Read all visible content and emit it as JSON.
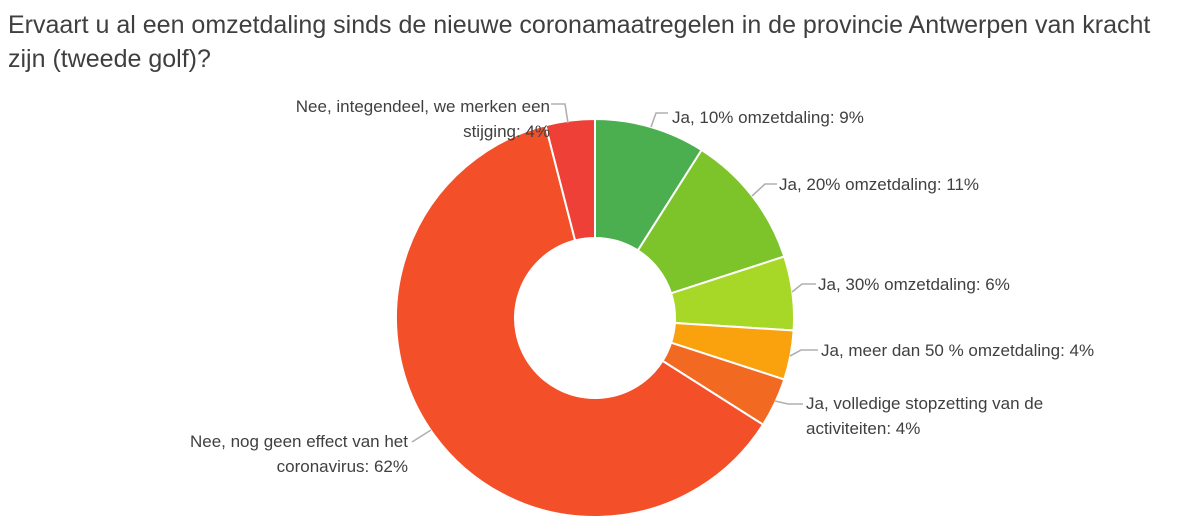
{
  "title": "Ervaart u al een omzetdaling sinds de nieuwe coronamaatregelen in de provincie Antwerpen van kracht zijn (tweede golf)?",
  "chart_data": {
    "type": "pie",
    "subtype": "donut",
    "title": "Ervaart u al een omzetdaling sinds de nieuwe coronamaatregelen in de provincie Antwerpen van kracht zijn (tweede golf)?",
    "unit": "%",
    "total": 100,
    "start_angle_deg": 0,
    "direction": "clockwise",
    "inner_radius_ratio": 0.4,
    "legend_position": "none",
    "label_style": "callout-leader-lines",
    "label_color": "#404040",
    "leader_color": "#b0b0b0",
    "slice_border_color": "#ffffff",
    "slices": [
      {
        "id": "ja-10",
        "label": "Ja, 10% omzetdaling",
        "value": 9,
        "color": "#4bae4f",
        "display": "Ja, 10% omzetdaling: 9%"
      },
      {
        "id": "ja-20",
        "label": "Ja, 20% omzetdaling",
        "value": 11,
        "color": "#7dc32a",
        "display": "Ja, 20% omzetdaling: 11%"
      },
      {
        "id": "ja-30",
        "label": "Ja, 30% omzetdaling",
        "value": 6,
        "color": "#a8d827",
        "display": "Ja, 30% omzetdaling: 6%"
      },
      {
        "id": "ja-50",
        "label": "Ja, meer dan 50 % omzetdaling",
        "value": 4,
        "color": "#faa10e",
        "display": "Ja, meer dan 50 % omzetdaling: 4%"
      },
      {
        "id": "stopzetting",
        "label": "Ja, volledige stopzetting van de activiteiten",
        "value": 4,
        "color": "#f26a22",
        "display": "Ja, volledige stopzetting van de activiteiten: 4%"
      },
      {
        "id": "geen-effect",
        "label": "Nee, nog geen effect van het coronavirus",
        "value": 62,
        "color": "#f3502a",
        "display": "Nee, nog geen effect van het coronavirus: 62%"
      },
      {
        "id": "stijging",
        "label": "Nee, integendeel, we merken een stijging",
        "value": 4,
        "color": "#ee4036",
        "display": "Nee, integendeel, we merken een stijging: 4%"
      }
    ]
  }
}
